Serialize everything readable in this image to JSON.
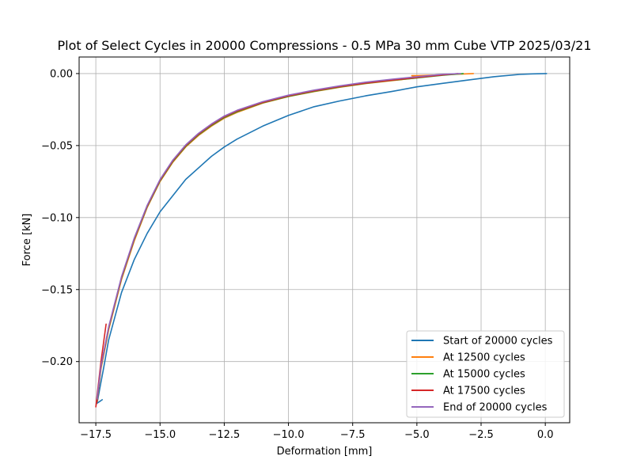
{
  "chart_data": {
    "type": "line",
    "title": "Plot of Select Cycles in 20000 Compressions - 0.5 MPa 30 mm Cube VTP 2025/03/21",
    "xlabel": "Deformation [mm]",
    "ylabel": "Force [kN]",
    "xlim": [
      -18.15,
      0.95
    ],
    "ylim": [
      -0.2425,
      0.0115
    ],
    "xticks": [
      -17.5,
      -15.0,
      -12.5,
      -10.0,
      -7.5,
      -5.0,
      -2.5,
      0.0
    ],
    "xtick_labels": [
      "−17.5",
      "−15.0",
      "−12.5",
      "−10.0",
      "−7.5",
      "−5.0",
      "−2.5",
      "0.0"
    ],
    "yticks": [
      0.0,
      -0.05,
      -0.1,
      -0.15,
      -0.2
    ],
    "ytick_labels": [
      "0.00",
      "−0.05",
      "−0.10",
      "−0.15",
      "−0.20"
    ],
    "grid": true,
    "legend_position": "lower-right",
    "series": [
      {
        "name": "Start of 20000 cycles",
        "color": "#1f77b4",
        "x": [
          0.05,
          -0.5,
          -1.0,
          -2.0,
          -3.0,
          -4.0,
          -5.0,
          -6.0,
          -7.0,
          -8.0,
          -9.0,
          -10.0,
          -11.0,
          -12.0,
          -12.5,
          -13.0,
          -14.0,
          -15.0,
          -15.5,
          -16.0,
          -16.5,
          -17.0,
          -17.2,
          -17.35,
          -17.45,
          -17.25
        ],
        "y": [
          0.0,
          -0.0002,
          -0.0006,
          -0.0022,
          -0.0045,
          -0.0068,
          -0.0092,
          -0.0125,
          -0.0155,
          -0.019,
          -0.023,
          -0.029,
          -0.0365,
          -0.0455,
          -0.051,
          -0.0575,
          -0.0735,
          -0.096,
          -0.111,
          -0.129,
          -0.152,
          -0.185,
          -0.205,
          -0.219,
          -0.229,
          -0.2265
        ]
      },
      {
        "name": "At 12500 cycles",
        "color": "#ff7f0e",
        "x": [
          -2.8,
          -4.0,
          -5.0,
          -5.2,
          -5.0,
          -6.0,
          -7.0,
          -8.0,
          -9.0,
          -10.0,
          -11.0,
          -12.0,
          -12.5,
          -13.0,
          -13.5,
          -14.0,
          -14.5,
          -15.0,
          -15.5,
          -16.0,
          -16.5,
          -17.0,
          -17.3,
          -17.45
        ],
        "y": [
          0.0,
          -0.0008,
          -0.0015,
          -0.0015,
          -0.003,
          -0.005,
          -0.007,
          -0.0095,
          -0.0125,
          -0.016,
          -0.0205,
          -0.027,
          -0.031,
          -0.0365,
          -0.043,
          -0.051,
          -0.0615,
          -0.075,
          -0.093,
          -0.116,
          -0.143,
          -0.178,
          -0.205,
          -0.228
        ]
      },
      {
        "name": "At 15000 cycles",
        "color": "#2ca02c",
        "x": [
          -3.2,
          -4.0,
          -5.0,
          -6.0,
          -7.0,
          -8.0,
          -9.0,
          -10.0,
          -11.0,
          -12.0,
          -12.5,
          -13.0,
          -13.5,
          -14.0,
          -14.5,
          -15.0,
          -15.5,
          -16.0,
          -16.5,
          -17.0,
          -17.3,
          -17.45
        ],
        "y": [
          0.0,
          -0.0012,
          -0.003,
          -0.0048,
          -0.0068,
          -0.0093,
          -0.0123,
          -0.0158,
          -0.0203,
          -0.0265,
          -0.0305,
          -0.036,
          -0.0425,
          -0.0505,
          -0.061,
          -0.0745,
          -0.0925,
          -0.115,
          -0.142,
          -0.177,
          -0.204,
          -0.227
        ]
      },
      {
        "name": "At 17500 cycles",
        "color": "#d62728",
        "x": [
          -3.4,
          -4.0,
          -5.0,
          -6.0,
          -7.0,
          -8.0,
          -9.0,
          -10.0,
          -11.0,
          -12.0,
          -12.5,
          -13.0,
          -13.5,
          -14.0,
          -14.5,
          -15.0,
          -15.5,
          -16.0,
          -16.5,
          -17.0,
          -17.3,
          -17.45,
          -17.5,
          -17.3,
          -17.1
        ],
        "y": [
          0.0,
          -0.001,
          -0.0028,
          -0.0046,
          -0.0066,
          -0.009,
          -0.012,
          -0.0155,
          -0.02,
          -0.026,
          -0.03,
          -0.0355,
          -0.042,
          -0.05,
          -0.0605,
          -0.074,
          -0.092,
          -0.1145,
          -0.1415,
          -0.1765,
          -0.2035,
          -0.2265,
          -0.2315,
          -0.2,
          -0.174
        ]
      },
      {
        "name": "End of 20000 cycles",
        "color": "#9467bd",
        "x": [
          -3.3,
          -4.0,
          -5.0,
          -6.0,
          -7.0,
          -8.0,
          -9.0,
          -10.0,
          -11.0,
          -12.0,
          -12.5,
          -13.0,
          -13.5,
          -14.0,
          -14.5,
          -15.0,
          -15.5,
          -16.0,
          -16.5,
          -17.0,
          -17.3,
          -17.45
        ],
        "y": [
          0.0,
          -0.0005,
          -0.0022,
          -0.004,
          -0.006,
          -0.0085,
          -0.0115,
          -0.015,
          -0.0195,
          -0.0255,
          -0.0295,
          -0.035,
          -0.0415,
          -0.0495,
          -0.06,
          -0.0735,
          -0.0915,
          -0.114,
          -0.141,
          -0.176,
          -0.203,
          -0.226
        ]
      }
    ]
  }
}
